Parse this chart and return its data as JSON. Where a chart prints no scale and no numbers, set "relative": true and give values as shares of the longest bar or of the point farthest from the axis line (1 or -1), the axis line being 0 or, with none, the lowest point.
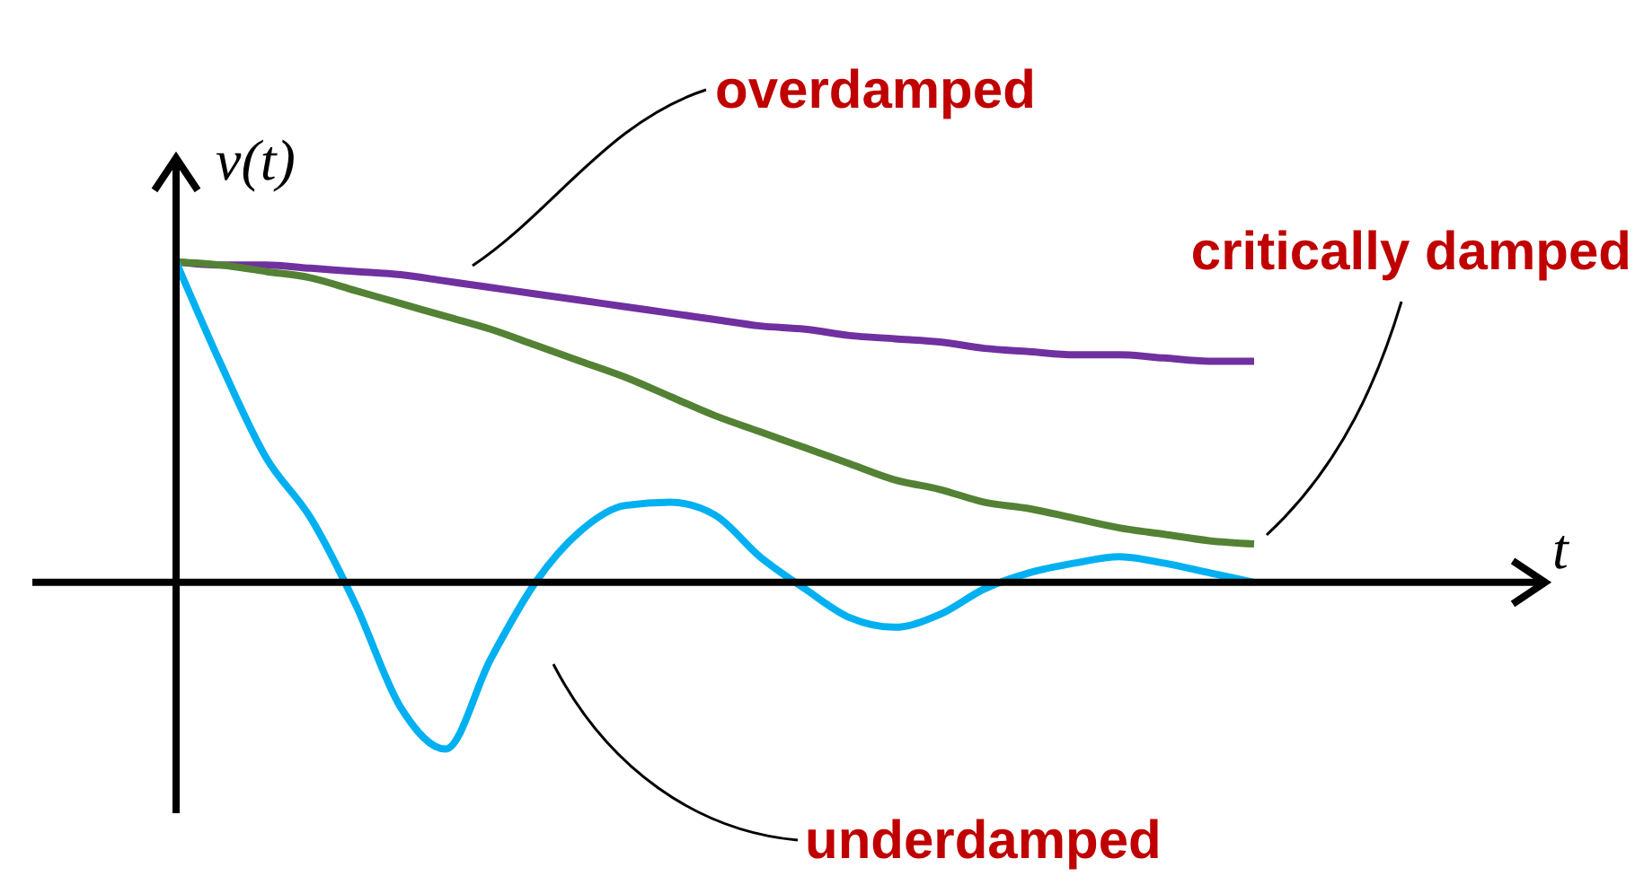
{
  "chart_data": {
    "type": "line",
    "relative": true,
    "xlabel": "t",
    "ylabel": "v(t)",
    "marker": "none",
    "line_style": "solid",
    "categories": [
      null,
      null,
      null,
      null,
      null,
      null,
      null,
      null,
      null,
      null,
      null,
      null,
      null,
      null,
      null,
      null,
      null,
      null,
      null,
      null,
      null,
      null,
      null,
      null,
      null
    ],
    "series": [
      {
        "name": "overdamped",
        "color": "#7030a0",
        "values": [
          1.0,
          0.99,
          0.99,
          0.98,
          0.97,
          0.96,
          0.94,
          0.92,
          0.9,
          0.88,
          0.86,
          0.84,
          0.82,
          0.8,
          0.79,
          0.77,
          0.76,
          0.75,
          0.73,
          0.72,
          0.71,
          0.71,
          0.7,
          0.69,
          0.69
        ]
      },
      {
        "name": "critically damped",
        "color": "#548235",
        "values": [
          1.0,
          0.99,
          0.97,
          0.95,
          0.91,
          0.87,
          0.83,
          0.79,
          0.74,
          0.69,
          0.64,
          0.58,
          0.52,
          0.47,
          0.42,
          0.37,
          0.32,
          0.29,
          0.25,
          0.23,
          0.2,
          0.17,
          0.15,
          0.13,
          0.12
        ]
      },
      {
        "name": "underdamped",
        "color": "#00b0f0",
        "values": [
          1.0,
          0.68,
          0.39,
          0.2,
          -0.07,
          -0.39,
          -0.52,
          -0.24,
          0,
          0.16,
          0.24,
          0.25,
          0.21,
          0.08,
          -0.02,
          -0.11,
          -0.14,
          -0.1,
          -0.02,
          0.03,
          0.06,
          0.08,
          0.06,
          0.03,
          0
        ]
      }
    ]
  }
}
